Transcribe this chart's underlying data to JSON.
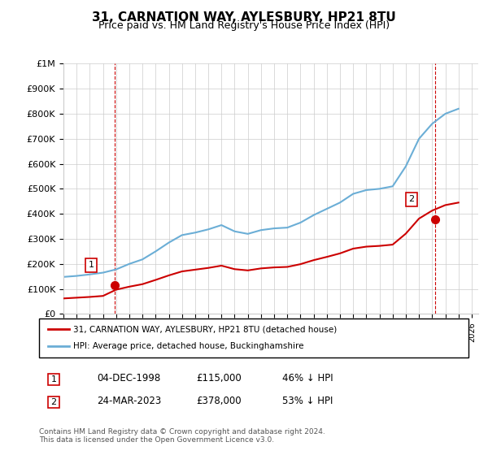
{
  "title": "31, CARNATION WAY, AYLESBURY, HP21 8TU",
  "subtitle": "Price paid vs. HM Land Registry's House Price Index (HPI)",
  "xlabel": "",
  "ylabel": "",
  "ylim": [
    0,
    1000000
  ],
  "xlim_start": 1995,
  "xlim_end": 2026.5,
  "yticks": [
    0,
    100000,
    200000,
    300000,
    400000,
    500000,
    600000,
    700000,
    800000,
    900000,
    1000000
  ],
  "ytick_labels": [
    "£0",
    "£100K",
    "£200K",
    "£300K",
    "£400K",
    "£500K",
    "£600K",
    "£700K",
    "£800K",
    "£900K",
    "£1M"
  ],
  "hpi_color": "#6baed6",
  "price_color": "#cc0000",
  "vline_color": "#cc0000",
  "point1_date": 1998.92,
  "point1_price": 115000,
  "point2_date": 2023.23,
  "point2_price": 378000,
  "legend_label1": "31, CARNATION WAY, AYLESBURY, HP21 8TU (detached house)",
  "legend_label2": "HPI: Average price, detached house, Buckinghamshire",
  "annotation1_label": "1",
  "annotation2_label": "2",
  "table_row1": [
    "1",
    "04-DEC-1998",
    "£115,000",
    "46% ↓ HPI"
  ],
  "table_row2": [
    "2",
    "24-MAR-2023",
    "£378,000",
    "53% ↓ HPI"
  ],
  "footnote": "Contains HM Land Registry data © Crown copyright and database right 2024.\nThis data is licensed under the Open Government Licence v3.0.",
  "background_color": "#ffffff",
  "grid_color": "#cccccc",
  "hpi_years": [
    1995,
    1996,
    1997,
    1998,
    1999,
    2000,
    2001,
    2002,
    2003,
    2004,
    2005,
    2006,
    2007,
    2008,
    2009,
    2010,
    2011,
    2012,
    2013,
    2014,
    2015,
    2016,
    2017,
    2018,
    2019,
    2020,
    2021,
    2022,
    2023,
    2024,
    2025
  ],
  "hpi_values": [
    148000,
    152000,
    158000,
    165000,
    178000,
    200000,
    218000,
    250000,
    285000,
    315000,
    325000,
    338000,
    355000,
    330000,
    320000,
    335000,
    342000,
    345000,
    365000,
    395000,
    420000,
    445000,
    480000,
    495000,
    500000,
    510000,
    590000,
    700000,
    760000,
    800000,
    820000
  ],
  "price_years": [
    1995,
    1996,
    1997,
    1998,
    1999,
    2000,
    2001,
    2002,
    2003,
    2004,
    2005,
    2006,
    2007,
    2008,
    2009,
    2010,
    2011,
    2012,
    2013,
    2014,
    2015,
    2016,
    2017,
    2018,
    2019,
    2020,
    2021,
    2022,
    2023,
    2024,
    2025
  ],
  "price_values": [
    62000,
    65000,
    68000,
    72000,
    97000,
    109000,
    119000,
    136000,
    154000,
    170000,
    177000,
    184000,
    193000,
    179000,
    174000,
    182000,
    186000,
    188000,
    199000,
    215000,
    228000,
    242000,
    261000,
    269000,
    272000,
    277000,
    321000,
    381000,
    413000,
    435000,
    445000
  ]
}
